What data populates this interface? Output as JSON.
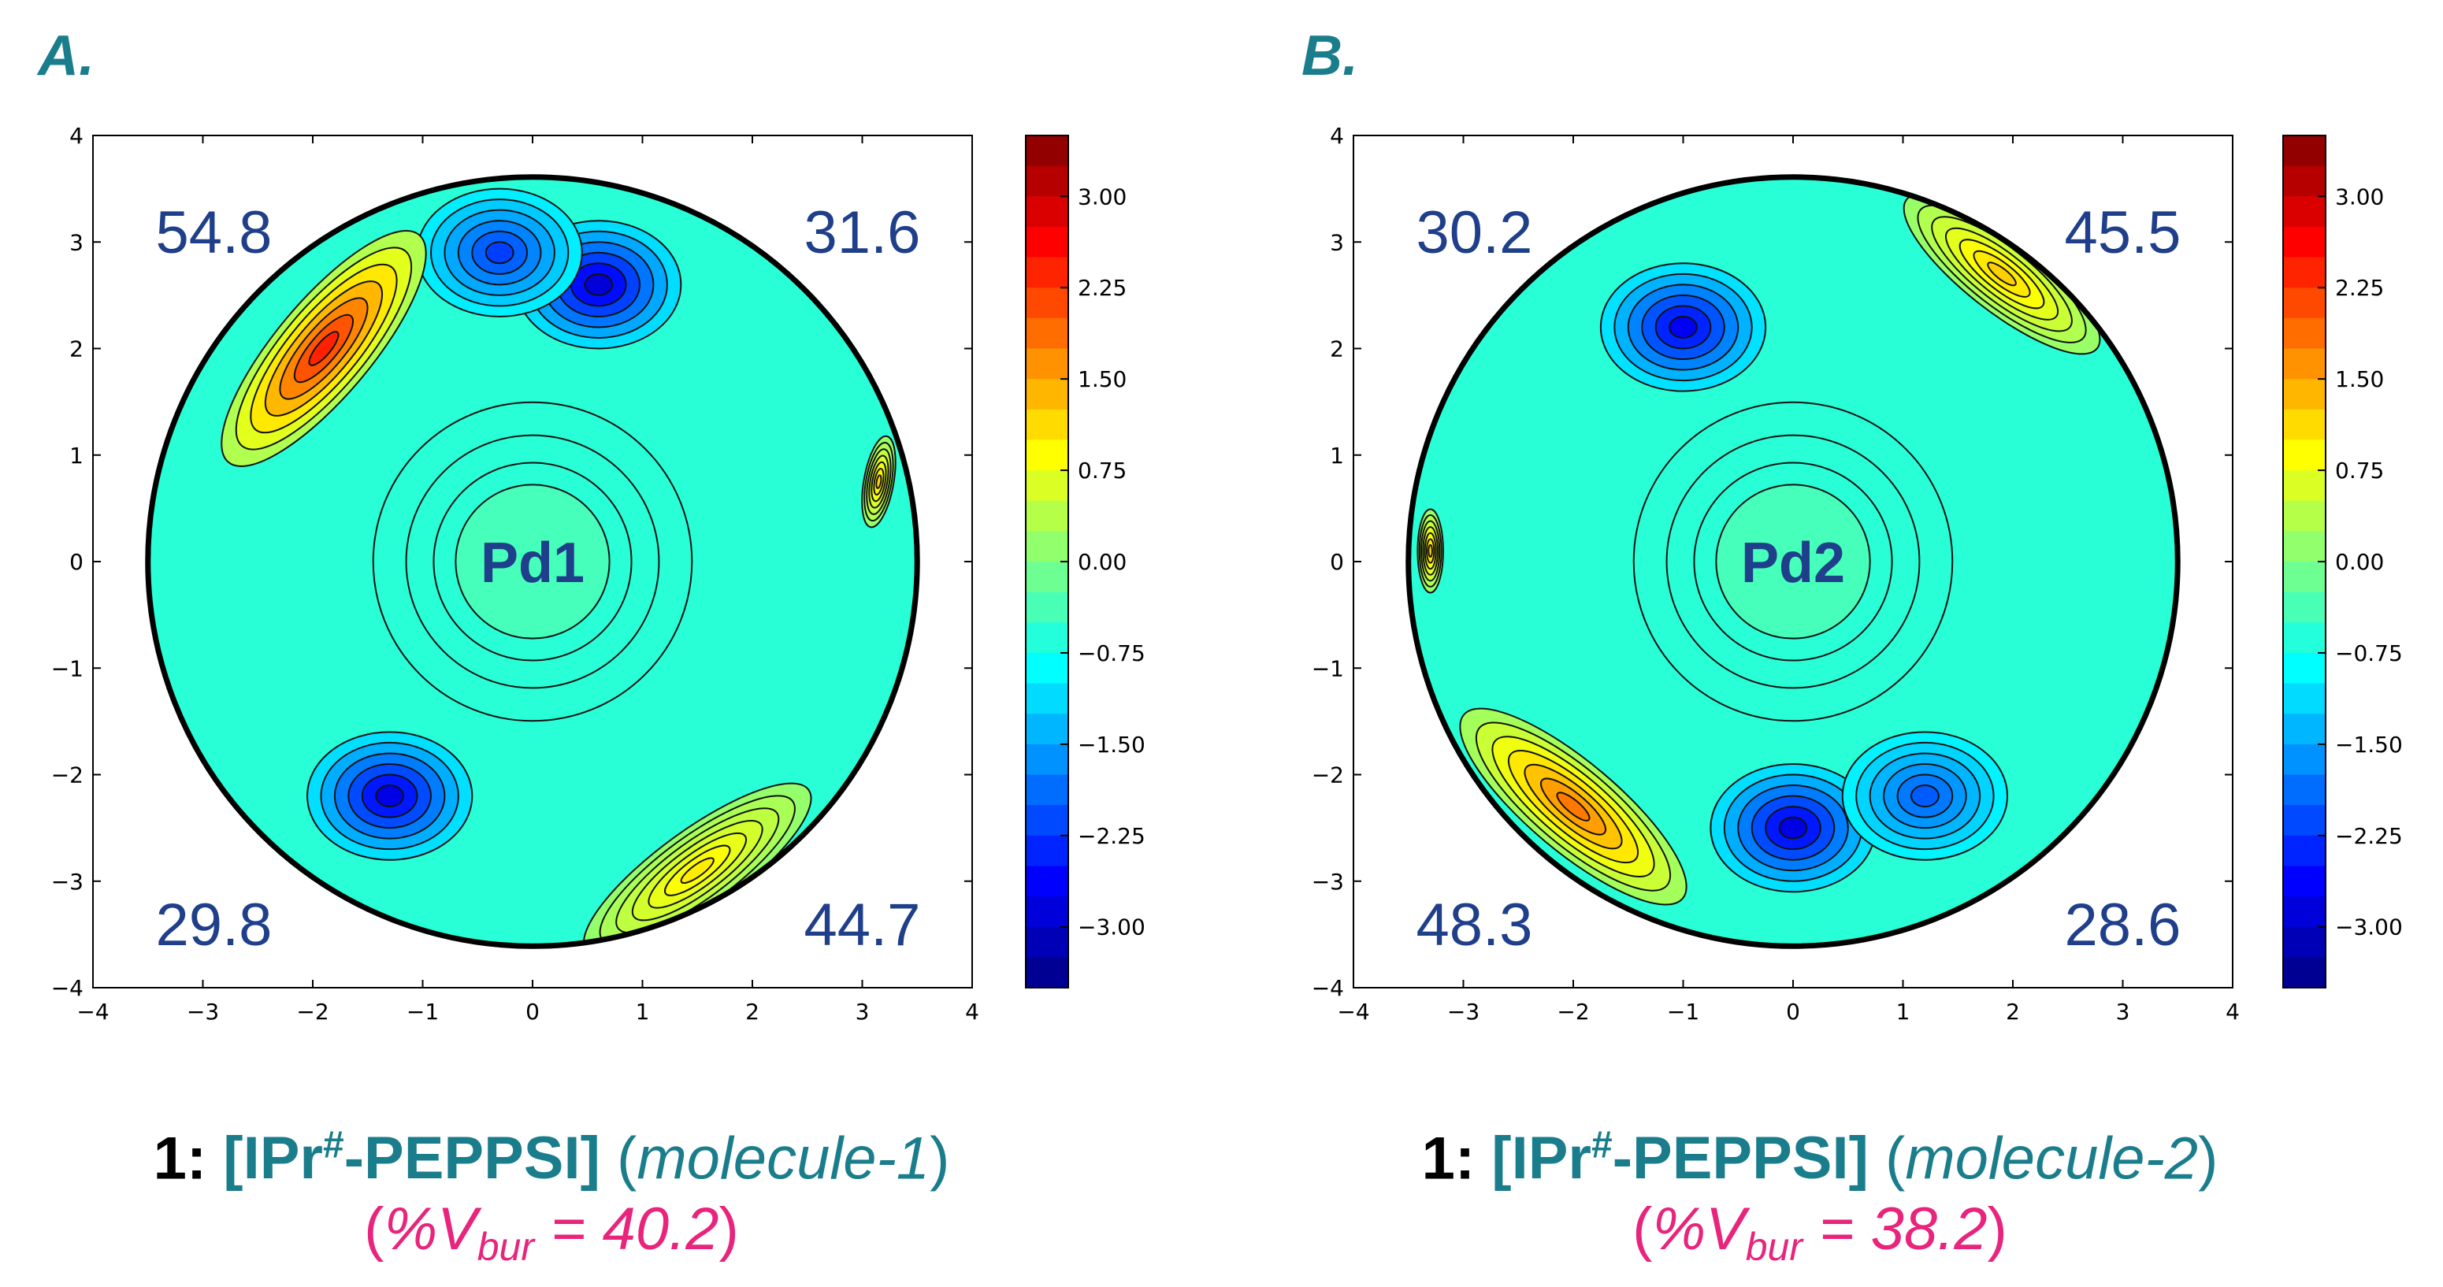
{
  "chart_data": [
    {
      "type": "contour",
      "panel_label": "A.",
      "center_label": "Pd1",
      "quadrant_values": {
        "top_left": "54.8",
        "top_right": "31.6",
        "bottom_left": "29.8",
        "bottom_right": "44.7"
      },
      "xlim": [
        -4,
        4
      ],
      "ylim": [
        -4,
        4
      ],
      "xticks": [
        "−4",
        "−3",
        "−2",
        "−1",
        "0",
        "1",
        "2",
        "3",
        "4"
      ],
      "yticks": [
        "4",
        "3",
        "2",
        "1",
        "0",
        "−1",
        "−2",
        "−3",
        "−4"
      ],
      "colorbar": {
        "range": [
          -3.5,
          3.5
        ],
        "ticks": [
          "3.00",
          "2.25",
          "1.50",
          "0.75",
          "0.00",
          "−0.75",
          "−1.50",
          "−2.25",
          "−3.00"
        ]
      },
      "hotspots": [
        {
          "x": -1.9,
          "y": 2.0,
          "value": 2.4,
          "rx": 1.35,
          "ry": 0.45,
          "angle": 50
        },
        {
          "x": 1.5,
          "y": -2.9,
          "value": 1.0,
          "rx": 1.25,
          "ry": 0.38,
          "angle": 36
        },
        {
          "x": 3.15,
          "y": 0.75,
          "value": 1.1,
          "rx": 0.42,
          "ry": 0.14,
          "angle": 80
        }
      ],
      "coldspots": [
        {
          "x": -1.3,
          "y": -2.2,
          "value": -2.8
        },
        {
          "x": 0.6,
          "y": 2.6,
          "value": -2.9
        },
        {
          "x": -0.3,
          "y": 2.9,
          "value": -2.2
        }
      ],
      "caption": {
        "number": "1:",
        "catalyst_main": "[IPr",
        "catalyst_sup": "#",
        "catalyst_end": "-PEPPSI]",
        "paren_open": "(",
        "molecule": "molecule-1",
        "paren_close": ")",
        "vbur_prefix": "%V",
        "vbur_sub": "bur",
        "vbur_value": " = 40.2"
      }
    },
    {
      "type": "contour",
      "panel_label": "B.",
      "center_label": "Pd2",
      "quadrant_values": {
        "top_left": "30.2",
        "top_right": "45.5",
        "bottom_left": "48.3",
        "bottom_right": "28.6"
      },
      "xlim": [
        -4,
        4
      ],
      "ylim": [
        -4,
        4
      ],
      "xticks": [
        "−4",
        "−3",
        "−2",
        "−1",
        "0",
        "1",
        "2",
        "3",
        "4"
      ],
      "yticks": [
        "4",
        "3",
        "2",
        "1",
        "0",
        "−1",
        "−2",
        "−3",
        "−4"
      ],
      "colorbar": {
        "range": [
          -3.5,
          3.5
        ],
        "ticks": [
          "3.00",
          "2.25",
          "1.50",
          "0.75",
          "0.00",
          "−0.75",
          "−1.50",
          "−2.25",
          "−3.00"
        ]
      },
      "hotspots": [
        {
          "x": 1.9,
          "y": 2.7,
          "value": 1.2,
          "rx": 1.1,
          "ry": 0.35,
          "angle": -38
        },
        {
          "x": -2.0,
          "y": -2.3,
          "value": 1.8,
          "rx": 1.3,
          "ry": 0.42,
          "angle": -40
        },
        {
          "x": -3.3,
          "y": 0.1,
          "value": 1.2,
          "rx": 0.38,
          "ry": 0.12,
          "angle": 90
        }
      ],
      "coldspots": [
        {
          "x": -1.0,
          "y": 2.2,
          "value": -2.7
        },
        {
          "x": 0.0,
          "y": -2.5,
          "value": -2.8
        },
        {
          "x": 1.2,
          "y": -2.2,
          "value": -2.0
        }
      ],
      "caption": {
        "number": "1:",
        "catalyst_main": "[IPr",
        "catalyst_sup": "#",
        "catalyst_end": "-PEPPSI]",
        "paren_open": "(",
        "molecule": "molecule-2",
        "paren_close": ")",
        "vbur_prefix": "%V",
        "vbur_sub": "bur",
        "vbur_value": " = 38.2"
      }
    }
  ]
}
